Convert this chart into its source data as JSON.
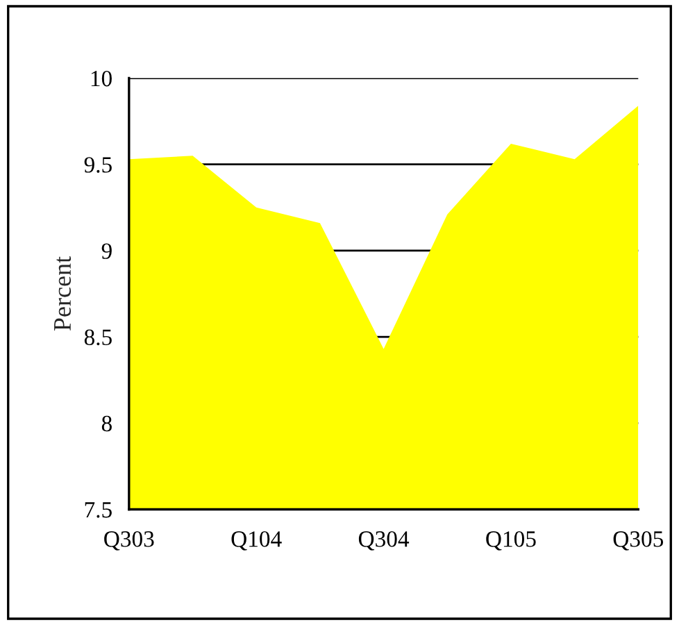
{
  "chart_data": {
    "type": "area",
    "ylabel": "Percent",
    "categories": [
      "Q303",
      null,
      "Q104",
      null,
      "Q304",
      null,
      "Q105",
      null,
      "Q305"
    ],
    "values": [
      9.53,
      9.55,
      9.25,
      9.16,
      8.43,
      9.21,
      9.62,
      9.53,
      9.84
    ],
    "color": "#ffff00",
    "ylim": [
      7.5,
      10
    ],
    "yticks": [
      7.5,
      8,
      8.5,
      9,
      9.5,
      10
    ],
    "grid": "y",
    "legend": false
  }
}
